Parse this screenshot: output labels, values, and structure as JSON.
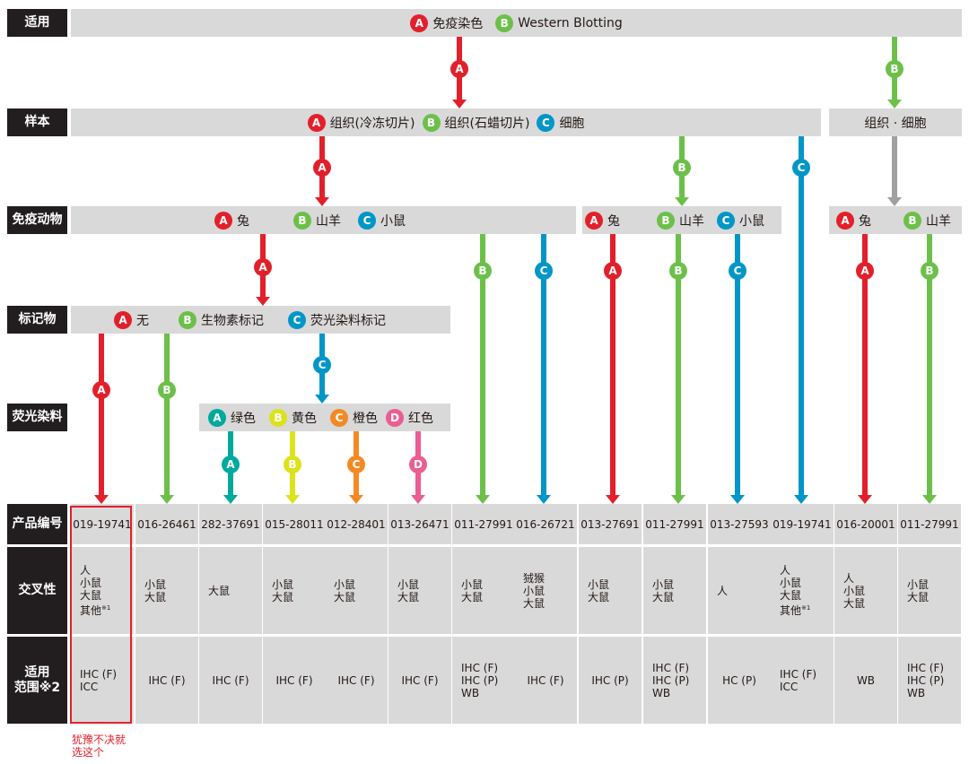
{
  "colors": {
    "A": "#e2202b",
    "B": "#6cc04a",
    "C": "#0096c7",
    "teal": "#00a99d",
    "yellow": "#dce21b",
    "orange": "#f28a24",
    "pink": "#eb5d93",
    "gray": "#a0a0a0"
  },
  "row_labels": {
    "applicable": "适用",
    "sample": "样本",
    "host": "免疫动物",
    "marker": "标记物",
    "dye": "荧光染料",
    "product": "产品编号",
    "cross": "交叉性",
    "range": "适用\n范围※2"
  },
  "applicable": [
    {
      "badge": "A",
      "text": "免疫染色"
    },
    {
      "badge": "B",
      "text": "Western Blotting"
    }
  ],
  "sample": {
    "main": [
      {
        "badge": "A",
        "text": "组织(冷冻切片)"
      },
      {
        "badge": "B",
        "text": "组织(石蜡切片)"
      },
      {
        "badge": "C",
        "text": "细胞"
      }
    ],
    "side": "组织 · 细胞"
  },
  "host": {
    "group1": [
      {
        "badge": "A",
        "text": "兔"
      },
      {
        "badge": "B",
        "text": "山羊"
      },
      {
        "badge": "C",
        "text": "小鼠"
      }
    ],
    "group2": [
      {
        "badge": "A",
        "text": "兔"
      },
      {
        "badge": "B",
        "text": "山羊"
      },
      {
        "badge": "C",
        "text": "小鼠"
      }
    ],
    "group3": [
      {
        "badge": "A",
        "text": "兔"
      },
      {
        "badge": "B",
        "text": "山羊"
      }
    ]
  },
  "marker": [
    {
      "badge": "A",
      "text": "无"
    },
    {
      "badge": "B",
      "text": "生物素标记"
    },
    {
      "badge": "C",
      "text": "荧光染料标记"
    }
  ],
  "dye": [
    {
      "badge": "A",
      "text": "绿色"
    },
    {
      "badge": "B",
      "text": "黄色"
    },
    {
      "badge": "C",
      "text": "橙色"
    },
    {
      "badge": "D",
      "text": "红色"
    }
  ],
  "products": [
    {
      "code": "019-19741",
      "cross": "人\n小鼠\n大鼠\n其他",
      "cross_note": "※1",
      "range": "IHC (F)\nICC"
    },
    {
      "code": "016-26461",
      "cross": "小鼠\n大鼠",
      "cross_note": "",
      "range": "IHC (F)"
    },
    {
      "code": "282-37691",
      "cross": "大鼠",
      "cross_note": "",
      "range": "IHC (F)"
    },
    {
      "code": "015-28011",
      "cross": "小鼠\n大鼠",
      "cross_note": "",
      "range": "IHC (F)"
    },
    {
      "code": "012-28401",
      "cross": "小鼠\n大鼠",
      "cross_note": "",
      "range": "IHC (F)"
    },
    {
      "code": "013-26471",
      "cross": "小鼠\n大鼠",
      "cross_note": "",
      "range": "IHC (F)"
    },
    {
      "code": "011-27991",
      "cross": "小鼠\n大鼠",
      "cross_note": "",
      "range": "IHC (F)\nIHC (P)\nWB"
    },
    {
      "code": "016-26721",
      "cross": "狨猴\n小鼠\n大鼠",
      "cross_note": "",
      "range": "IHC (F)"
    },
    {
      "code": "013-27691",
      "cross": "小鼠\n大鼠",
      "cross_note": "",
      "range": "IHC (P)"
    },
    {
      "code": "011-27991",
      "cross": "小鼠\n大鼠",
      "cross_note": "",
      "range": "IHC (F)\nIHC (P)\nWB"
    },
    {
      "code": "013-27593",
      "cross": "人",
      "cross_note": "",
      "range": "HC (P)"
    },
    {
      "code": "019-19741",
      "cross": "人\n小鼠\n大鼠\n其他",
      "cross_note": "※1",
      "range": "IHC (F)\nICC"
    },
    {
      "code": "016-20001",
      "cross": "人\n小鼠\n大鼠",
      "cross_note": "",
      "range": "WB"
    },
    {
      "code": "011-27991",
      "cross": "小鼠\n大鼠",
      "cross_note": "",
      "range": "IHC (F)\nIHC (P)\nWB"
    }
  ],
  "note": "犹豫不决就\n选这个"
}
